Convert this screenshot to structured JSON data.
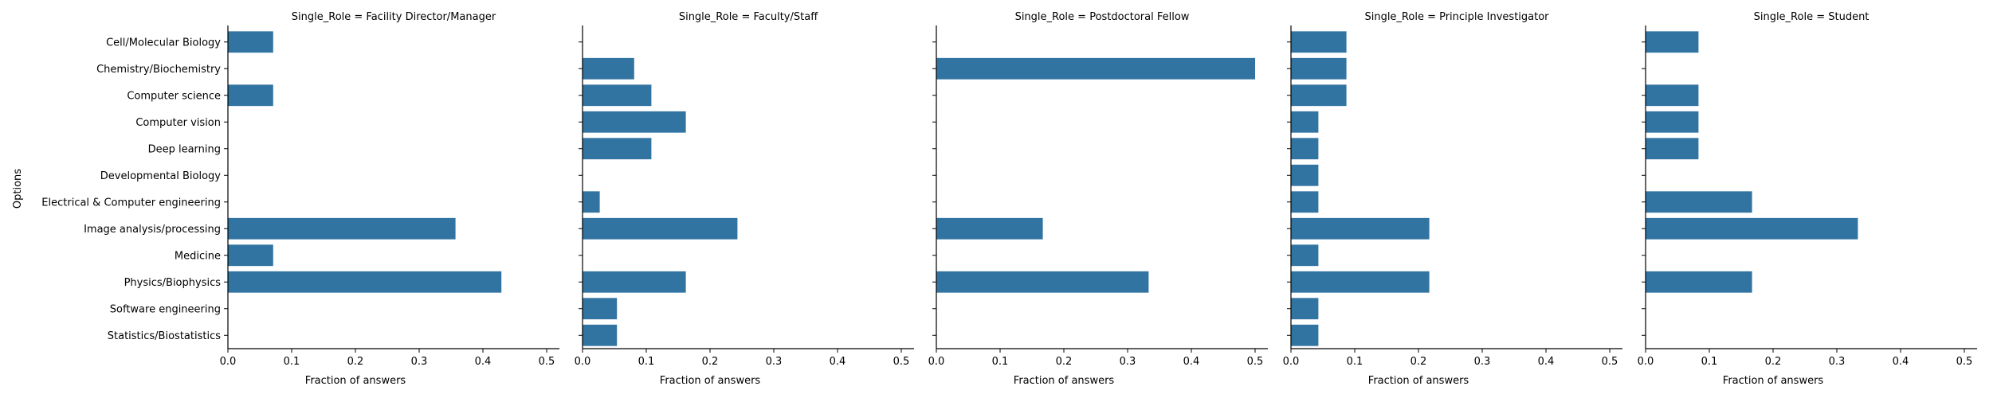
{
  "chart_data": {
    "type": "bar",
    "orientation": "horizontal",
    "ylabel": "Options",
    "xlabel": "Fraction of answers",
    "xlim": [
      0,
      0.52
    ],
    "xticks": [
      "0.0",
      "0.1",
      "0.2",
      "0.3",
      "0.4",
      "0.5"
    ],
    "bar_color": "#3274a1",
    "categories": [
      "Cell/Molecular Biology",
      "Chemistry/Biochemistry",
      "Computer science",
      "Computer vision",
      "Deep learning",
      "Developmental Biology",
      "Electrical & Computer engineering",
      "Image analysis/processing",
      "Medicine",
      "Physics/Biophysics",
      "Software engineering",
      "Statistics/Biostatistics"
    ],
    "panels": [
      {
        "title": "Single_Role = Facility Director/Manager",
        "values": [
          0.071,
          0,
          0.071,
          0,
          0,
          0,
          0,
          0.357,
          0.071,
          0.429,
          0,
          0
        ]
      },
      {
        "title": "Single_Role = Faculty/Staff",
        "values": [
          0,
          0.081,
          0.108,
          0.162,
          0.108,
          0,
          0.027,
          0.243,
          0,
          0.162,
          0.054,
          0.054
        ]
      },
      {
        "title": "Single_Role = Postdoctoral Fellow",
        "values": [
          0,
          0.5,
          0,
          0,
          0,
          0,
          0,
          0.167,
          0,
          0.333,
          0,
          0
        ]
      },
      {
        "title": "Single_Role = Principle Investigator",
        "values": [
          0.087,
          0.087,
          0.087,
          0.043,
          0.043,
          0.043,
          0.043,
          0.217,
          0.043,
          0.217,
          0.043,
          0.043
        ]
      },
      {
        "title": "Single_Role = Student",
        "values": [
          0.083,
          0,
          0.083,
          0.083,
          0.083,
          0,
          0.167,
          0.333,
          0,
          0.167,
          0,
          0
        ]
      }
    ]
  }
}
